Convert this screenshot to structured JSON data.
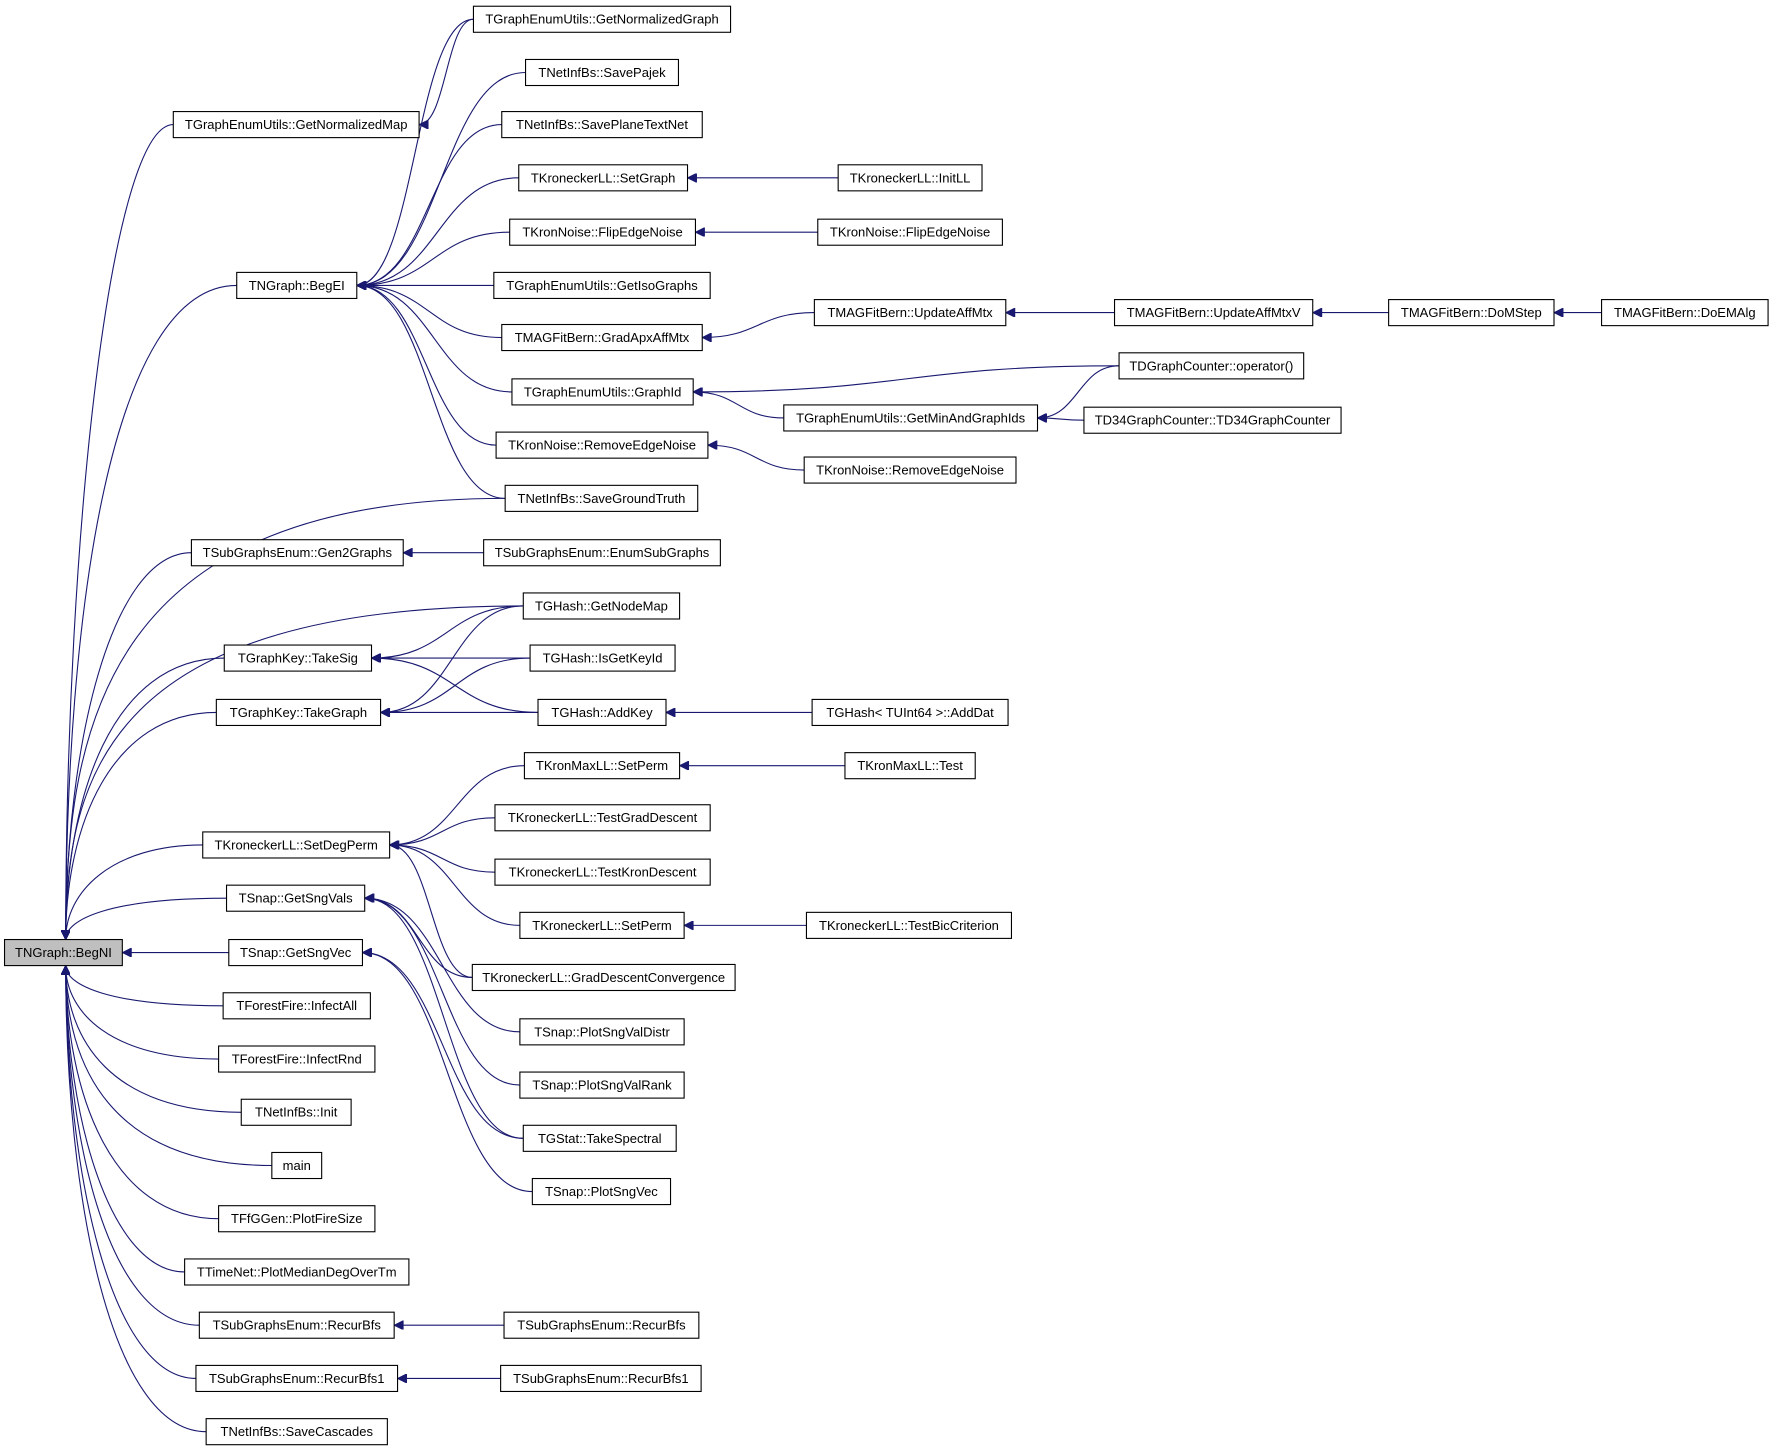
{
  "nodes": [
    {
      "label": "TNGraph::BegNI"
    },
    {
      "label": "TGraphEnumUtils::GetNormalizedMap"
    },
    {
      "label": "TGraphEnumUtils::GetNormalizedGraph"
    },
    {
      "label": "TNGraph::BegEI"
    },
    {
      "label": "TNetInfBs::SavePajek"
    },
    {
      "label": "TNetInfBs::SavePlaneTextNet"
    },
    {
      "label": "TKroneckerLL::SetGraph"
    },
    {
      "label": "TKroneckerLL::InitLL"
    },
    {
      "label": "TKronNoise::FlipEdgeNoise"
    },
    {
      "label": "TKronNoise::FlipEdgeNoise"
    },
    {
      "label": "TGraphEnumUtils::GetIsoGraphs"
    },
    {
      "label": "TMAGFitBern::GradApxAffMtx"
    },
    {
      "label": "TMAGFitBern::UpdateAffMtx"
    },
    {
      "label": "TMAGFitBern::UpdateAffMtxV"
    },
    {
      "label": "TMAGFitBern::DoMStep"
    },
    {
      "label": "TMAGFitBern::DoEMAlg"
    },
    {
      "label": "TDGraphCounter::operator()"
    },
    {
      "label": "TGraphEnumUtils::GraphId"
    },
    {
      "label": "TGraphEnumUtils::GetMinAndGraphIds"
    },
    {
      "label": "TD34GraphCounter::TD34GraphCounter"
    },
    {
      "label": "TKronNoise::RemoveEdgeNoise"
    },
    {
      "label": "TKronNoise::RemoveEdgeNoise"
    },
    {
      "label": "TNetInfBs::SaveGroundTruth"
    },
    {
      "label": "TSubGraphsEnum::Gen2Graphs"
    },
    {
      "label": "TSubGraphsEnum::EnumSubGraphs"
    },
    {
      "label": "TGHash::GetNodeMap"
    },
    {
      "label": "TGraphKey::TakeSig"
    },
    {
      "label": "TGHash::IsGetKeyId"
    },
    {
      "label": "TGraphKey::TakeGraph"
    },
    {
      "label": "TGHash::AddKey"
    },
    {
      "label": "TGHash< TUInt64 >::AddDat"
    },
    {
      "label": "TKronMaxLL::SetPerm"
    },
    {
      "label": "TKronMaxLL::Test"
    },
    {
      "label": "TKroneckerLL::SetDegPerm"
    },
    {
      "label": "TKroneckerLL::TestGradDescent"
    },
    {
      "label": "TKroneckerLL::TestKronDescent"
    },
    {
      "label": "TKroneckerLL::SetPerm"
    },
    {
      "label": "TKroneckerLL::TestBicCriterion"
    },
    {
      "label": "TSnap::GetSngVals"
    },
    {
      "label": "TSnap::GetSngVec"
    },
    {
      "label": "TKroneckerLL::GradDescentConvergence"
    },
    {
      "label": "TForestFire::InfectAll"
    },
    {
      "label": "TForestFire::InfectRnd"
    },
    {
      "label": "TSnap::PlotSngValDistr"
    },
    {
      "label": "TSnap::PlotSngValRank"
    },
    {
      "label": "TNetInfBs::Init"
    },
    {
      "label": "TGStat::TakeSpectral"
    },
    {
      "label": "main"
    },
    {
      "label": "TSnap::PlotSngVec"
    },
    {
      "label": "TFfGGen::PlotFireSize"
    },
    {
      "label": "TTimeNet::PlotMedianDegOverTm"
    },
    {
      "label": "TSubGraphsEnum::RecurBfs"
    },
    {
      "label": "TSubGraphsEnum::RecurBfs"
    },
    {
      "label": "TSubGraphsEnum::RecurBfs1"
    },
    {
      "label": "TSubGraphsEnum::RecurBfs1"
    },
    {
      "label": "TNetInfBs::SaveCascades"
    }
  ]
}
